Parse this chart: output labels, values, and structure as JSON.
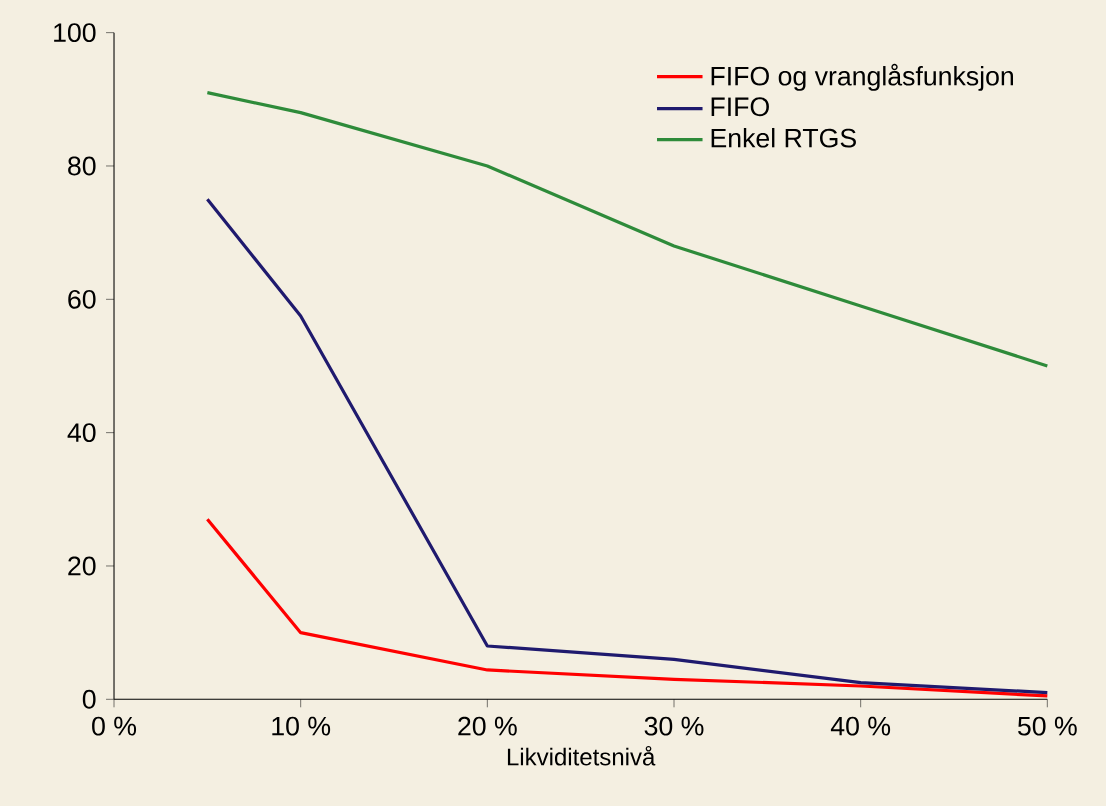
{
  "chart_data": {
    "type": "line",
    "xlabel": "Likviditetsnivå",
    "x": [
      5,
      10,
      20,
      30,
      40,
      50
    ],
    "series": [
      {
        "name": "FIFO og vranglåsfunksjon",
        "color": "#ff0000",
        "values": [
          27,
          10,
          4.4,
          3,
          2,
          0.5
        ]
      },
      {
        "name": "FIFO",
        "color": "#1f1a6e",
        "values": [
          75,
          57.5,
          8,
          6,
          2.5,
          1
        ]
      },
      {
        "name": "Enkel RTGS",
        "color": "#2e8b3a",
        "values": [
          91,
          88,
          80,
          68,
          59,
          50
        ]
      }
    ],
    "xlim": [
      0,
      50
    ],
    "xticks": [
      {
        "value": 0,
        "label": "0 %"
      },
      {
        "value": 10,
        "label": "10 %"
      },
      {
        "value": 20,
        "label": "20 %"
      },
      {
        "value": 30,
        "label": "30 %"
      },
      {
        "value": 40,
        "label": "40 %"
      },
      {
        "value": 50,
        "label": "50 %"
      }
    ],
    "ylim": [
      0,
      100
    ],
    "yticks": [
      0,
      20,
      40,
      60,
      80,
      100
    ],
    "grid": false,
    "legend": "top right",
    "marker": "none",
    "line_style": "solid"
  }
}
